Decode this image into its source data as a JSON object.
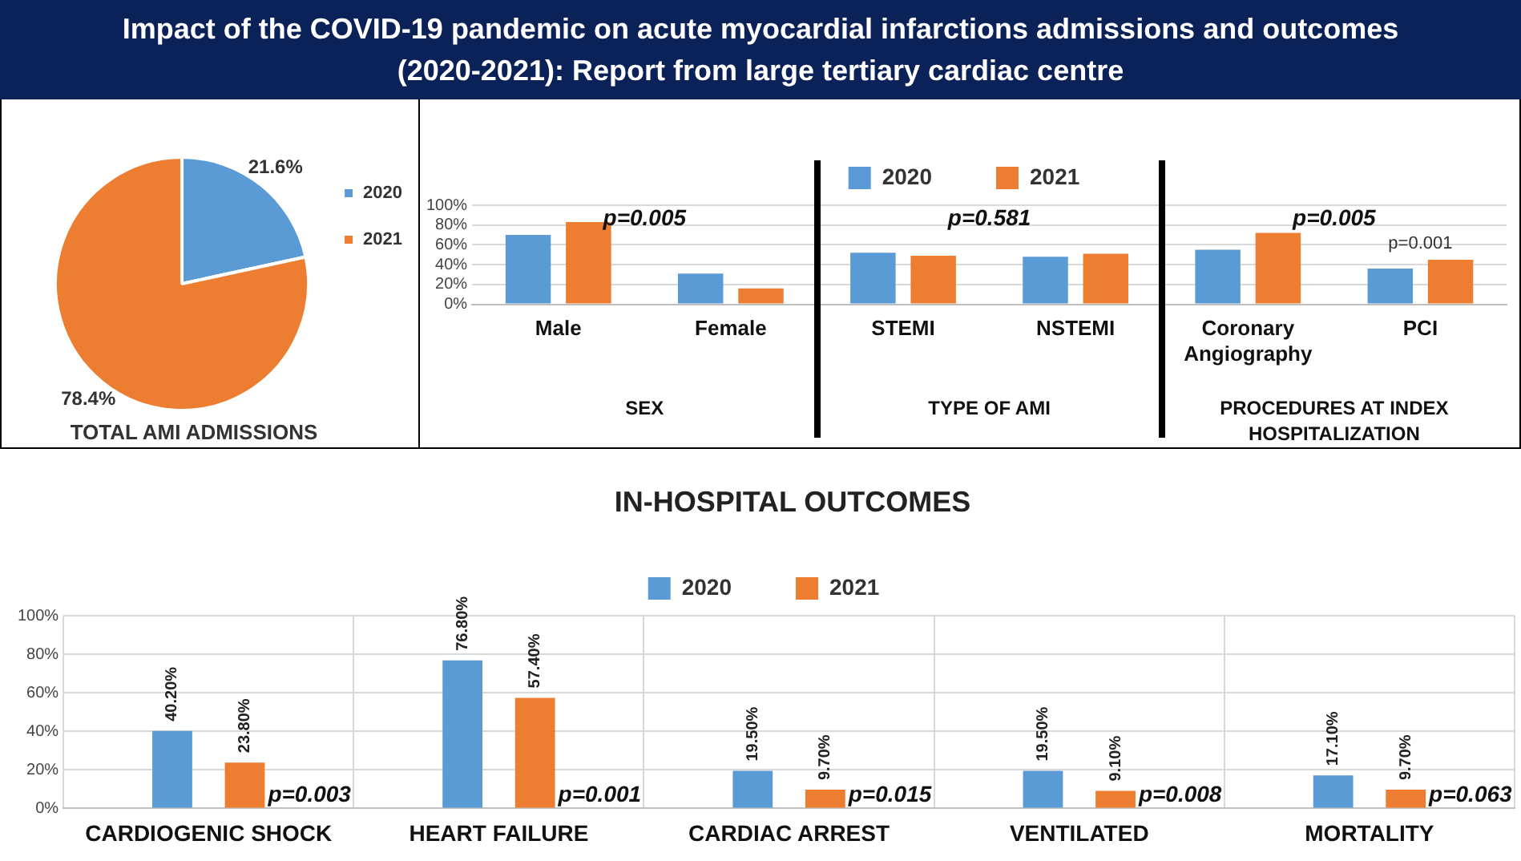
{
  "chart_data": [
    {
      "type": "pie",
      "title": "Impact of the COVID-19 pandemic on acute myocardial infarctions admissions and outcomes (2020-2021): Report from large tertiary cardiac centre",
      "categories": [
        "2020",
        "2021"
      ],
      "values": [
        21.6,
        78.4
      ],
      "colors": [
        "#5b9bd5",
        "#ed7d31"
      ],
      "value_labels": [
        "21.6%",
        "78.4%"
      ],
      "legend": "top right",
      "annotations": [
        "TOTAL AMI ADMISSIONS"
      ]
    },
    {
      "type": "bar",
      "categories": [
        "Male",
        "Female",
        "STEMI",
        "NSTEMI",
        "Coronary Angiography",
        "PCI"
      ],
      "series": [
        {
          "name": "2020",
          "color": "#5b9bd5",
          "values": [
            70,
            31,
            52,
            48,
            55,
            36
          ]
        },
        {
          "name": "2021",
          "color": "#ed7d31",
          "values": [
            83,
            16,
            49,
            51,
            72,
            45
          ]
        }
      ],
      "ylim": [
        0,
        100
      ],
      "yticks": [
        {
          "value": 0,
          "label": "0%"
        },
        {
          "value": 20,
          "label": "20%"
        },
        {
          "value": 40,
          "label": "40%"
        },
        {
          "value": 60,
          "label": "60%"
        },
        {
          "value": 80,
          "label": "80%"
        },
        {
          "value": 100,
          "label": "100%"
        }
      ],
      "grid": "y",
      "legend": "top",
      "annotations": [
        "SEX",
        "TYPE OF AMI",
        "PROCEDURES AT INDEX HOSPITALIZATION",
        "p=0.005",
        "p=0.581",
        "p=0.005",
        {
          "text": "p=0.001",
          "x": "PCI",
          "y": 45
        }
      ]
    },
    {
      "type": "bar",
      "title": "IN-HOSPITAL OUTCOMES",
      "categories": [
        "CARDIOGENIC SHOCK",
        "HEART FAILURE",
        "CARDIAC ARREST",
        "VENTILATED",
        "MORTALITY"
      ],
      "series": [
        {
          "name": "2020",
          "color": "#5b9bd5",
          "values": [
            40.2,
            76.8,
            19.5,
            19.5,
            17.1
          ],
          "value_labels": [
            "40.20%",
            "76.80%",
            "19.50%",
            "19.50%",
            "17.10%"
          ]
        },
        {
          "name": "2021",
          "color": "#ed7d31",
          "values": [
            23.8,
            57.4,
            9.7,
            9.1,
            9.7
          ],
          "value_labels": [
            "23.80%",
            "57.40%",
            "9.70%",
            "9.10%",
            "9.70%"
          ]
        }
      ],
      "ylim": [
        0,
        100
      ],
      "yticks": [
        {
          "value": 0,
          "label": "0%"
        },
        {
          "value": 20,
          "label": "20%"
        },
        {
          "value": 40,
          "label": "40%"
        },
        {
          "value": 60,
          "label": "60%"
        },
        {
          "value": 80,
          "label": "80%"
        },
        {
          "value": 100,
          "label": "100%"
        }
      ],
      "grid": true,
      "legend": "top",
      "annotations": [
        "p=0.003",
        "p=0.001",
        "p=0.015",
        "p=0.008",
        "p=0.063"
      ]
    }
  ]
}
